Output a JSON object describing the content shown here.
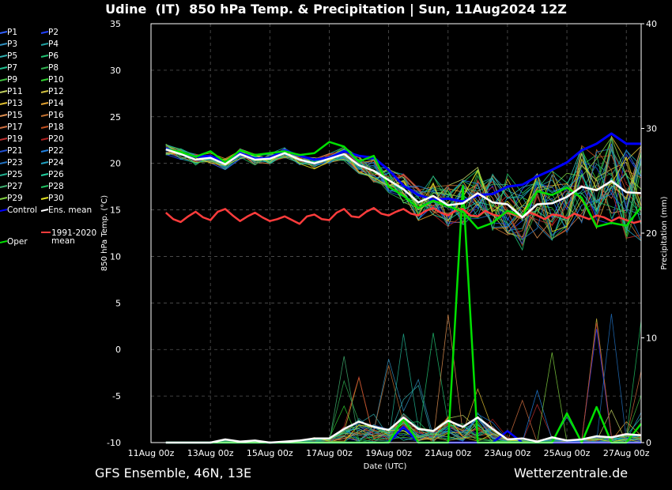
{
  "title": "Udine  (IT)  850 hPa Temp. & Precipitation | Sun, 11Aug2024 12Z",
  "footer_left": "GFS Ensemble, 46N, 13E",
  "footer_right": "Wetterzentrale.de",
  "chart_data": {
    "type": "line",
    "title": "Udine  (IT)  850 hPa Temp. & Precipitation | Sun, 11Aug2024 12Z",
    "xlabel": "Date (UTC)",
    "ylabel": "850 hPa Temp. (°C)",
    "y2label": "Precipitation (mm)",
    "ylim": [
      -10,
      35
    ],
    "y2lim": [
      0,
      40
    ],
    "yticks": [
      "-10",
      "-5",
      "0",
      "5",
      "10",
      "15",
      "20",
      "25",
      "30",
      "35"
    ],
    "y2ticks": [
      "0",
      "10",
      "20",
      "30",
      "40"
    ],
    "xticks": [
      "11Aug 00z",
      "13Aug 00z",
      "15Aug 00z",
      "17Aug 00z",
      "19Aug 00z",
      "21Aug 00z",
      "23Aug 00z",
      "25Aug 00z",
      "27Aug 00z"
    ],
    "xlim_days": [
      0,
      16.5
    ],
    "grid": true,
    "legend": [
      "P1",
      "P2",
      "P3",
      "P4",
      "P5",
      "P6",
      "P7",
      "P8",
      "P9",
      "P10",
      "P11",
      "P12",
      "P13",
      "P14",
      "P15",
      "P16",
      "P17",
      "P18",
      "P19",
      "P20",
      "P21",
      "P22",
      "P23",
      "P24",
      "P25",
      "P26",
      "P27",
      "P28",
      "P29",
      "P30",
      "Control",
      "Ens. mean",
      "",
      "",
      "1991-2020 mean",
      "Oper"
    ],
    "colors": {
      "control": "#0000ff",
      "mean": "#ffffff",
      "climate": "#ff3c3c",
      "oper": "#00e000",
      "members": [
        "#3060ff",
        "#2040ff",
        "#3090c0",
        "#20a0a0",
        "#30b0b0",
        "#20c070",
        "#20c090",
        "#30b050",
        "#40c040",
        "#30d030",
        "#c0d060",
        "#d0c040",
        "#e0c030",
        "#e0a030",
        "#e09050",
        "#c07030",
        "#d07040",
        "#c05020",
        "#c03030",
        "#b02020",
        "#2050d0",
        "#2080e0",
        "#2070c0",
        "#20a0c0",
        "#20b090",
        "#20d0a0",
        "#40b070",
        "#20c060",
        "#80d040",
        "#e0e020"
      ]
    },
    "series": [
      {
        "name": "Control",
        "type": "temperature",
        "x_days": [
          0.5,
          1,
          1.5,
          2,
          2.5,
          3,
          3.5,
          4,
          4.5,
          5,
          5.5,
          6,
          6.5,
          7,
          7.5,
          8,
          8.5,
          9,
          9.5,
          10,
          10.5,
          11,
          11.5,
          12,
          12.5,
          13,
          13.5,
          14,
          14.5,
          15,
          15.5,
          16,
          16.5
        ],
        "values": [
          21.6,
          21,
          20.7,
          20.8,
          20.1,
          21.1,
          20.5,
          20.6,
          21.4,
          20.8,
          20.4,
          20.6,
          21.3,
          20.8,
          20.6,
          19.3,
          17.6,
          16.6,
          16.1,
          16.2,
          15.9,
          16.6,
          16.7,
          17.5,
          17.7,
          18.6,
          19.3,
          20.1,
          21.4,
          22.1,
          23.2,
          22.1,
          22.1
        ]
      },
      {
        "name": "Ens. mean",
        "type": "temperature",
        "x_days": [
          0.5,
          1,
          1.5,
          2,
          2.5,
          3,
          3.5,
          4,
          4.5,
          5,
          5.5,
          6,
          6.5,
          7,
          7.5,
          8,
          8.5,
          9,
          9.5,
          10,
          10.5,
          11,
          11.5,
          12,
          12.5,
          13,
          13.5,
          14,
          14.5,
          15,
          15.5,
          16,
          16.5
        ],
        "values": [
          21.5,
          21,
          20.4,
          20.6,
          19.9,
          21,
          20.4,
          20.5,
          21.1,
          20.4,
          20,
          20.5,
          21,
          19.8,
          19.2,
          18.2,
          17.2,
          15.8,
          16.5,
          15.5,
          15.7,
          16.8,
          15.8,
          15.6,
          14.2,
          15.6,
          15.7,
          16.4,
          17.5,
          17.1,
          18.1,
          16.9,
          16.8
        ]
      },
      {
        "name": "Oper",
        "type": "temperature",
        "x_days": [
          0.5,
          1,
          1.5,
          2,
          2.5,
          3,
          3.5,
          4,
          4.5,
          5,
          5.5,
          6,
          6.5,
          7,
          7.5,
          8,
          8.5,
          9,
          9.5,
          10,
          10.5,
          11,
          11.5,
          12,
          12.5,
          13,
          13.5,
          14,
          14.5,
          15,
          15.5,
          16,
          16.5
        ],
        "values": [
          21.5,
          21.2,
          20.7,
          21.3,
          20.1,
          21.4,
          20.9,
          21.1,
          21.3,
          20.9,
          21.1,
          22.3,
          21.8,
          20.2,
          20.8,
          17.5,
          16.5,
          15.2,
          16,
          15.4,
          14.8,
          13,
          13.6,
          14.9,
          14.3,
          17,
          16.6,
          17.4,
          16.3,
          13.2,
          13.6,
          13.3,
          15.3
        ]
      },
      {
        "name": "1991-2020 mean",
        "type": "temperature",
        "x_days": [
          0.5,
          0.75,
          1,
          1.25,
          1.5,
          1.75,
          2,
          2.25,
          2.5,
          2.75,
          3,
          3.25,
          3.5,
          3.75,
          4,
          4.25,
          4.5,
          4.75,
          5,
          5.25,
          5.5,
          5.75,
          6,
          6.25,
          6.5,
          6.75,
          7,
          7.25,
          7.5,
          7.75,
          8,
          8.25,
          8.5,
          8.75,
          9,
          9.25,
          9.5,
          9.75,
          10,
          10.25,
          10.5,
          10.75,
          11,
          11.25,
          11.5,
          11.75,
          12,
          12.25,
          12.5,
          12.75,
          13,
          13.25,
          13.5,
          13.75,
          14,
          14.25,
          14.5,
          14.75,
          15,
          15.25,
          15.5,
          15.75,
          16,
          16.25,
          16.5
        ],
        "values": [
          14.7,
          14,
          13.7,
          14.3,
          14.8,
          14.2,
          13.9,
          14.8,
          15.1,
          14.4,
          13.8,
          14.3,
          14.7,
          14.2,
          13.8,
          14,
          14.3,
          13.9,
          13.5,
          14.3,
          14.5,
          14,
          13.9,
          14.7,
          15.1,
          14.3,
          14.2,
          14.8,
          15.2,
          14.6,
          14.4,
          14.8,
          15.1,
          14.6,
          14.4,
          14.9,
          15.2,
          14.7,
          14.4,
          14.9,
          15.1,
          14.4,
          14.3,
          14.9,
          14.5,
          14.3,
          14.8,
          14.5,
          14.2,
          14.7,
          14.4,
          14,
          14.5,
          14.4,
          14.1,
          14.6,
          14.3,
          14,
          14.4,
          14.2,
          13.8,
          14.2,
          13.9,
          13.6,
          13.8
        ]
      },
      {
        "name": "Ens. mean precipitation",
        "type": "precipitation",
        "x_days": [
          0.5,
          1,
          1.5,
          2,
          2.5,
          3,
          3.5,
          4,
          4.5,
          5,
          5.5,
          6,
          6.5,
          7,
          7.5,
          8,
          8.5,
          9,
          9.5,
          10,
          10.5,
          11,
          11.5,
          12,
          12.5,
          13,
          13.5,
          14,
          14.5,
          15,
          15.5,
          16,
          16.5
        ],
        "values": [
          0,
          0,
          0,
          0,
          0.3,
          0.1,
          0.2,
          0,
          0.1,
          0.2,
          0.4,
          0.4,
          1.3,
          2,
          1.5,
          1.2,
          2.4,
          1.3,
          1.1,
          2.1,
          1.5,
          2.4,
          1.3,
          0.3,
          0.4,
          0.1,
          0.5,
          0.2,
          0.3,
          0.6,
          0.5,
          0.8,
          0.7
        ]
      },
      {
        "name": "Oper precipitation",
        "type": "precipitation",
        "x_days": [
          0.5,
          1,
          1.5,
          2,
          2.5,
          3,
          3.5,
          4,
          4.5,
          5,
          5.5,
          6,
          6.5,
          7,
          7.5,
          8,
          8.5,
          9,
          9.5,
          10,
          10.5,
          11,
          11.5,
          12,
          12.5,
          13,
          13.5,
          14,
          14.5,
          15,
          15.5,
          16,
          16.5
        ],
        "values": [
          0,
          0,
          0,
          0,
          0,
          0,
          0,
          0,
          0,
          0,
          0,
          0,
          0,
          0,
          0,
          0,
          2.3,
          0,
          0,
          0,
          24.5,
          0,
          0,
          0,
          0,
          0,
          0,
          2.8,
          0,
          3.4,
          0,
          0,
          1.8
        ]
      },
      {
        "name": "Control precipitation",
        "type": "precipitation",
        "x_days": [
          0.5,
          1,
          1.5,
          2,
          2.5,
          3,
          3.5,
          4,
          4.5,
          5,
          5.5,
          6,
          6.5,
          7,
          7.5,
          8,
          8.5,
          9,
          9.5,
          10,
          10.5,
          11,
          11.5,
          12,
          12.5,
          13,
          13.5,
          14,
          14.5,
          15,
          15.5,
          16,
          16.5
        ],
        "values": [
          0,
          0,
          0,
          0,
          0,
          0,
          0,
          0,
          0,
          0,
          0,
          0,
          0,
          0,
          0,
          0,
          1.5,
          0,
          0,
          0,
          0,
          0,
          0,
          1.1,
          0,
          0,
          0,
          0,
          0,
          0,
          0,
          0,
          0
        ]
      }
    ]
  }
}
